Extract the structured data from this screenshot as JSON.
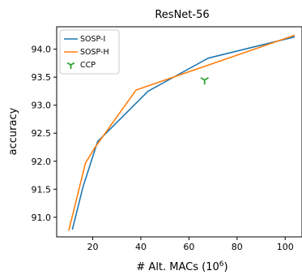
{
  "chart_data": {
    "type": "line",
    "title": "ResNet-56",
    "xlabel_main": "# Alt. MACs (10",
    "xlabel_sup": "6",
    "xlabel_close": ")",
    "ylabel": "accuracy",
    "xlim": [
      5,
      107
    ],
    "ylim": [
      90.65,
      94.4
    ],
    "xticks": [
      20,
      40,
      60,
      80,
      100
    ],
    "yticks": [
      91.0,
      91.5,
      92.0,
      92.5,
      93.0,
      93.5,
      94.0
    ],
    "legend_position": "top-left",
    "grid": false,
    "series": [
      {
        "name": "SOSP-I",
        "color": "#1f77b4",
        "marker": "line",
        "x": [
          11.5,
          16,
          22,
          43,
          68,
          104
        ],
        "y": [
          90.78,
          91.55,
          92.35,
          93.25,
          93.84,
          94.22
        ]
      },
      {
        "name": "SOSP-H",
        "color": "#ff7f0e",
        "marker": "line",
        "x": [
          10,
          17,
          21,
          38,
          104
        ],
        "y": [
          90.76,
          91.97,
          92.25,
          93.27,
          94.25
        ]
      },
      {
        "name": "CCP",
        "color": "#2ca02c",
        "marker": "tri_down",
        "x": [
          66.5
        ],
        "y": [
          93.45
        ]
      }
    ]
  }
}
